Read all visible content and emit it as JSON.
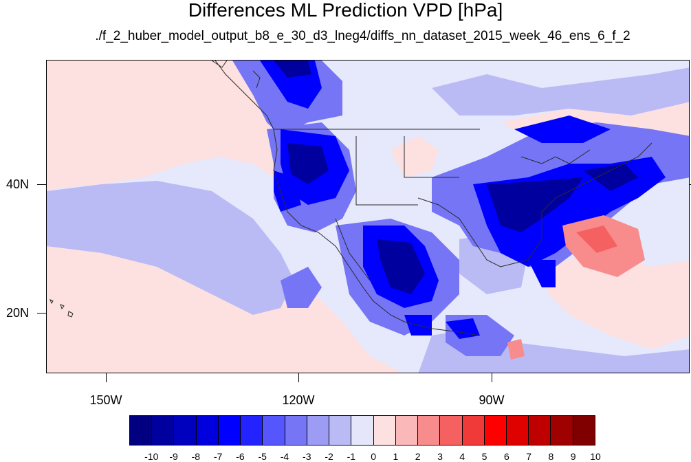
{
  "title": "Differences ML Prediction VPD [hPa]",
  "subtitle": "./f_2_huber_model_output_b8_e_30_d3_lneg4/diffs_nn_dataset_2015_week_46_ens_6_f_2",
  "axes": {
    "lat_labels": [
      "40N",
      "20N"
    ],
    "lon_labels": [
      "150W",
      "120W",
      "90W"
    ]
  },
  "colorbar": {
    "labels": [
      "-10",
      "-9",
      "-8",
      "-7",
      "-6",
      "-5",
      "-4",
      "-3",
      "-2",
      "-1",
      "0",
      "1",
      "2",
      "3",
      "4",
      "5",
      "6",
      "7",
      "8",
      "9",
      "10"
    ],
    "colors": [
      "#000080",
      "#00009f",
      "#0000bf",
      "#0000df",
      "#0000ff",
      "#2323ff",
      "#5656ff",
      "#7575f5",
      "#9c9cf5",
      "#babaf5",
      "#e6e6fa",
      "#fde0e0",
      "#fbb8b8",
      "#f88c8c",
      "#f56060",
      "#f03a3a",
      "#ff0000",
      "#df0000",
      "#bf0000",
      "#9f0000",
      "#800000"
    ]
  },
  "colors": {
    "background_ocean": "#e6e8fb",
    "light_blue": "#babaf5",
    "light_red": "#fde0e0",
    "coastline": "#2a2a2a"
  }
}
